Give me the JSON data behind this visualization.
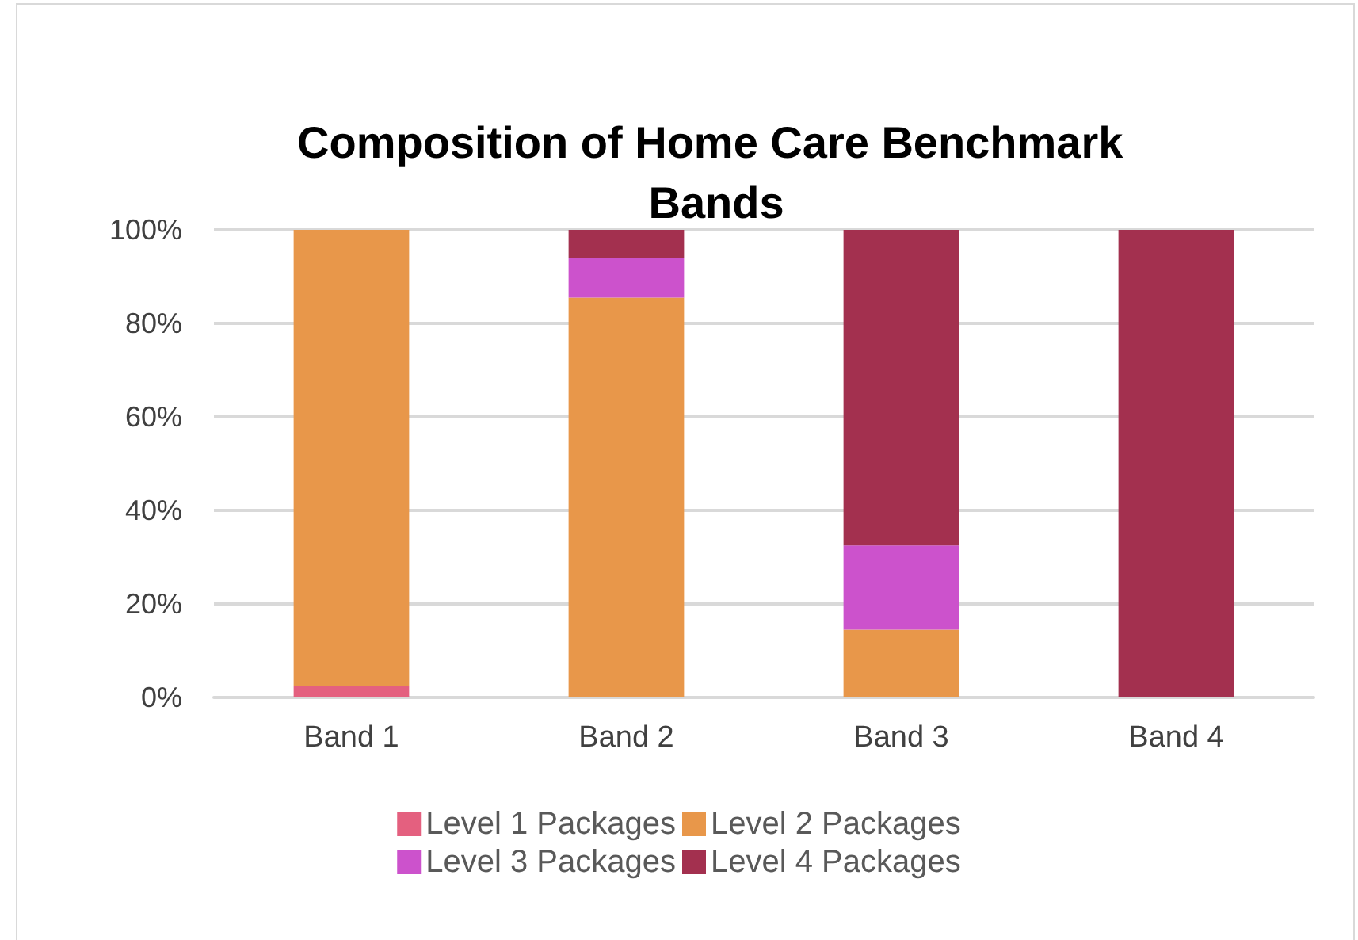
{
  "chart_data": {
    "type": "bar",
    "title": "Composition of Home Care Benchmark Bands",
    "categories": [
      "Band 1",
      "Band 2",
      "Band 3",
      "Band 4"
    ],
    "series": [
      {
        "name": "Level 1 Packages",
        "color": "#e4607f",
        "values": [
          2.5,
          0,
          0,
          0
        ]
      },
      {
        "name": "Level 2 Packages",
        "color": "#e8974a",
        "values": [
          97.5,
          85.5,
          14.5,
          0
        ]
      },
      {
        "name": "Level 3 Packages",
        "color": "#cc52cc",
        "values": [
          0,
          8.5,
          18,
          0
        ]
      },
      {
        "name": "Level 4 Packages",
        "color": "#a3304f",
        "values": [
          0,
          6,
          67.5,
          100
        ]
      }
    ],
    "stacked": true,
    "ylim": [
      0,
      100
    ],
    "yticks": [
      {
        "value": 0,
        "label": "0%"
      },
      {
        "value": 20,
        "label": "20%"
      },
      {
        "value": 40,
        "label": "40%"
      },
      {
        "value": 60,
        "label": "60%"
      },
      {
        "value": 80,
        "label": "80%"
      },
      {
        "value": 100,
        "label": "100%"
      }
    ],
    "grid": "y",
    "legend": "bottom"
  }
}
